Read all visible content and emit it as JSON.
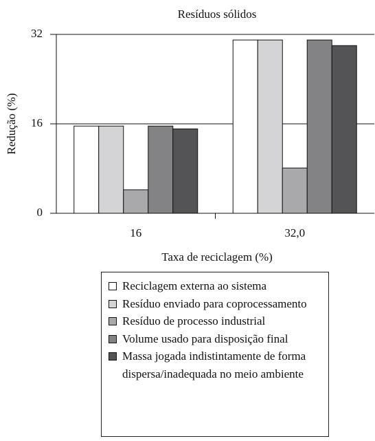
{
  "chart_data": {
    "type": "bar",
    "title": "Resíduos sólidos",
    "x_label": "Taxa de reciclagem (%)",
    "y_label": "Redução (%)",
    "categories": [
      "16",
      "32,0"
    ],
    "series": [
      {
        "name": "Reciclagem externa ao sistema",
        "color": "#ffffff",
        "values": [
          15.6,
          31.0
        ]
      },
      {
        "name": "Resíduo enviado para coprocessamento",
        "color": "#d4d4d6",
        "values": [
          15.6,
          31.0
        ]
      },
      {
        "name": "Resíduo de processo industrial",
        "color": "#a9a9ac",
        "values": [
          4.2,
          8.1
        ]
      },
      {
        "name": "Volume usado para disposição final",
        "color": "#838386",
        "values": [
          15.6,
          31.0
        ]
      },
      {
        "name": "Massa jogada indistintamente de forma dispersa/inadequada no meio ambiente",
        "color": "#545457",
        "values": [
          15.1,
          30.0
        ]
      }
    ],
    "ylim": [
      0,
      32
    ],
    "yticks": [
      0,
      16,
      32
    ],
    "grid": true
  }
}
